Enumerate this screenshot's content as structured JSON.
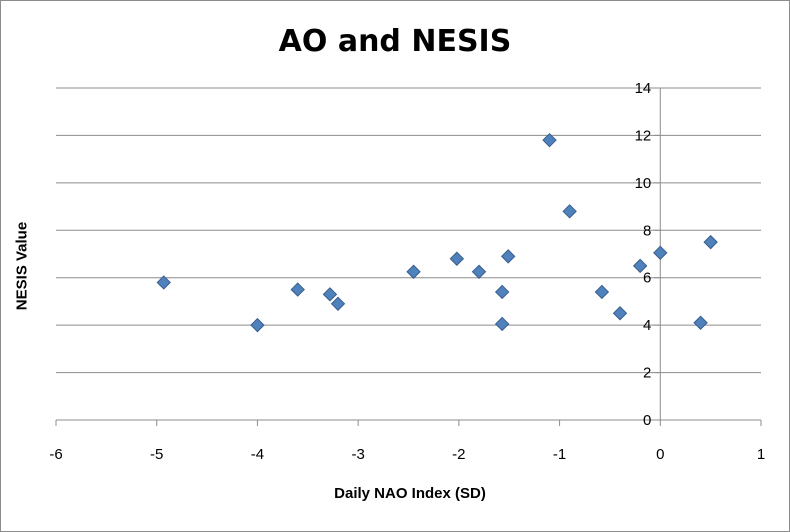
{
  "chart_data": {
    "type": "scatter",
    "title": "AO and NESIS",
    "xlabel": "Daily NAO Index (SD)",
    "ylabel": "NESIS Value",
    "xlim": [
      -6,
      1
    ],
    "ylim": [
      0,
      14
    ],
    "xticks": [
      -6,
      -5,
      -4,
      -3,
      -2,
      -1,
      0,
      1
    ],
    "yticks": [
      0,
      2,
      4,
      6,
      8,
      10,
      12,
      14
    ],
    "grid": "horizontal",
    "marker": "diamond",
    "marker_color": "#4f81bd",
    "marker_edge": "#385d8a",
    "series": [
      {
        "x": [
          -4.93,
          -4.0,
          -3.6,
          -3.28,
          -3.2,
          -2.45,
          -2.02,
          -1.8,
          -1.57,
          -1.57,
          -1.51,
          -1.1,
          -0.9,
          -0.58,
          -0.4,
          -0.2,
          0.0,
          0.4,
          0.5
        ],
        "y": [
          5.8,
          4.0,
          5.5,
          5.3,
          4.9,
          6.25,
          6.8,
          6.25,
          5.4,
          4.05,
          6.9,
          11.8,
          8.8,
          5.4,
          4.5,
          6.5,
          7.05,
          4.1,
          7.5
        ]
      }
    ]
  }
}
